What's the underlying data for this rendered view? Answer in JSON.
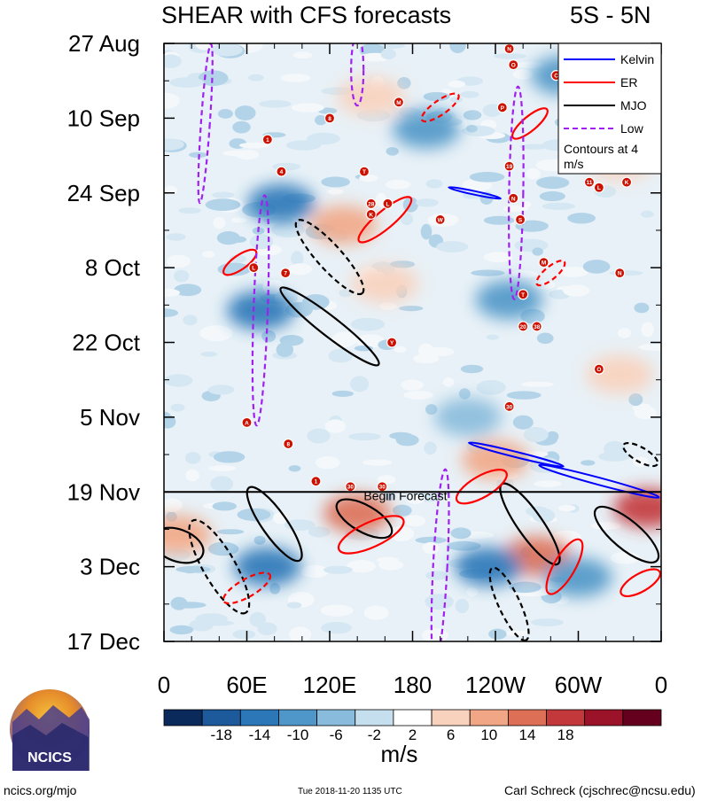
{
  "chart_data": {
    "type": "heatmap",
    "title": "SHEAR with CFS forecasts",
    "region": "5S - 5N",
    "y_tick_labels": [
      "27 Aug",
      "10 Sep",
      "24 Sep",
      "8 Oct",
      "22 Oct",
      "5 Nov",
      "19 Nov",
      "3 Dec",
      "17 Dec"
    ],
    "x_tick_labels": [
      "0",
      "60E",
      "120E",
      "180",
      "120W",
      "60W",
      "0"
    ],
    "x_range_degrees_east": [
      0,
      360
    ],
    "y_range_days_since_27_Aug": [
      0,
      112
    ],
    "forecast_start_day": 84,
    "forecast_label": "Begin Forecast",
    "colorbar": {
      "label": "m/s",
      "tick_labels": [
        "-18",
        "-14",
        "-10",
        "-6",
        "-2",
        "2",
        "6",
        "10",
        "14",
        "18"
      ],
      "colors": [
        "#0a2a5c",
        "#1c5a9c",
        "#2c77b8",
        "#4f97c8",
        "#89bcdc",
        "#c6dfee",
        "#ffffff",
        "#f9d2bd",
        "#f1a786",
        "#dd6f56",
        "#c3383a",
        "#9a1328",
        "#66001f"
      ]
    },
    "legend": {
      "position": "top-right",
      "entries": [
        {
          "name": "Kelvin",
          "color": "#0000ff"
        },
        {
          "name": "ER",
          "color": "#ff0000"
        },
        {
          "name": "MJO",
          "color": "#000000"
        },
        {
          "name": "Low",
          "color": "#a020f0"
        }
      ],
      "note": "Contours at 4 m/s"
    },
    "anomalies": [
      {
        "lon": 290,
        "day": 6,
        "v": -8,
        "label": "blue band"
      },
      {
        "lon": 150,
        "day": 10,
        "v": 8,
        "label": "warm streak"
      },
      {
        "lon": 190,
        "day": 16,
        "v": -8,
        "label": "blue area"
      },
      {
        "lon": 330,
        "day": 22,
        "v": 8,
        "label": "warm area"
      },
      {
        "lon": 85,
        "day": 30,
        "v": -14,
        "label": "blue core"
      },
      {
        "lon": 130,
        "day": 34,
        "v": 10,
        "label": "warm band"
      },
      {
        "lon": 70,
        "day": 50,
        "v": -12,
        "label": "blue column"
      },
      {
        "lon": 160,
        "day": 45,
        "v": 8,
        "label": "warm patch"
      },
      {
        "lon": 250,
        "day": 48,
        "v": -8,
        "label": "blue patch"
      },
      {
        "lon": 330,
        "day": 62,
        "v": 8,
        "label": "warm patch"
      },
      {
        "lon": 220,
        "day": 70,
        "v": -6,
        "label": "blue patch"
      },
      {
        "lon": 240,
        "day": 78,
        "v": 10,
        "label": "warm band"
      },
      {
        "lon": 140,
        "day": 88,
        "v": 16,
        "label": "warm core"
      },
      {
        "lon": 350,
        "day": 87,
        "v": 18,
        "label": "warm core"
      },
      {
        "lon": 10,
        "day": 92,
        "v": 12,
        "label": "warm core"
      },
      {
        "lon": 270,
        "day": 96,
        "v": 14,
        "label": "warm core"
      },
      {
        "lon": 235,
        "day": 98,
        "v": -12,
        "label": "blue core"
      },
      {
        "lon": 300,
        "day": 100,
        "v": -8,
        "label": "blue patch"
      },
      {
        "lon": 75,
        "day": 98,
        "v": -14,
        "label": "blue core"
      }
    ],
    "contours": [
      {
        "kind": "MJO",
        "sign": "neg",
        "lon": 120,
        "day": 40,
        "rx": 55,
        "ry": 14,
        "rot": 48
      },
      {
        "kind": "MJO",
        "sign": "pos",
        "lon": 120,
        "day": 53,
        "rx": 70,
        "ry": 11,
        "rot": 38
      },
      {
        "kind": "MJO",
        "sign": "pos",
        "lon": 80,
        "day": 90,
        "rx": 50,
        "ry": 14,
        "rot": 55
      },
      {
        "kind": "MJO",
        "sign": "neg",
        "lon": 40,
        "day": 98,
        "rx": 60,
        "ry": 18,
        "rot": 60
      },
      {
        "kind": "MJO",
        "sign": "pos",
        "lon": 145,
        "day": 89,
        "rx": 35,
        "ry": 15,
        "rot": 30
      },
      {
        "kind": "MJO",
        "sign": "pos",
        "lon": 265,
        "day": 90,
        "rx": 55,
        "ry": 14,
        "rot": 55
      },
      {
        "kind": "MJO",
        "sign": "pos",
        "lon": 335,
        "day": 92,
        "rx": 45,
        "ry": 16,
        "rot": 40
      },
      {
        "kind": "MJO",
        "sign": "neg",
        "lon": 250,
        "day": 105,
        "rx": 45,
        "ry": 12,
        "rot": 65
      },
      {
        "kind": "MJO",
        "sign": "pos",
        "lon": 10,
        "day": 94,
        "rx": 30,
        "ry": 18,
        "rot": 20
      },
      {
        "kind": "MJO",
        "sign": "neg",
        "lon": 345,
        "day": 77,
        "rx": 22,
        "ry": 8,
        "rot": 30
      },
      {
        "kind": "ER",
        "sign": "pos",
        "lon": 160,
        "day": 33,
        "rx": 38,
        "ry": 10,
        "rot": -40
      },
      {
        "kind": "ER",
        "sign": "pos",
        "lon": 55,
        "day": 41,
        "rx": 22,
        "ry": 8,
        "rot": -35
      },
      {
        "kind": "ER",
        "sign": "neg",
        "lon": 280,
        "day": 43,
        "rx": 20,
        "ry": 7,
        "rot": -40
      },
      {
        "kind": "ER",
        "sign": "pos",
        "lon": 150,
        "day": 92,
        "rx": 40,
        "ry": 14,
        "rot": -25
      },
      {
        "kind": "ER",
        "sign": "pos",
        "lon": 230,
        "day": 83,
        "rx": 32,
        "ry": 12,
        "rot": -30
      },
      {
        "kind": "ER",
        "sign": "pos",
        "lon": 290,
        "day": 98,
        "rx": 35,
        "ry": 12,
        "rot": -60
      },
      {
        "kind": "ER",
        "sign": "neg",
        "lon": 60,
        "day": 102,
        "rx": 30,
        "ry": 10,
        "rot": -30
      },
      {
        "kind": "ER",
        "sign": "neg",
        "lon": 200,
        "day": 12,
        "rx": 25,
        "ry": 8,
        "rot": -35
      },
      {
        "kind": "ER",
        "sign": "pos",
        "lon": 345,
        "day": 101,
        "rx": 25,
        "ry": 10,
        "rot": -30
      },
      {
        "kind": "ER",
        "sign": "pos",
        "lon": 265,
        "day": 15,
        "rx": 25,
        "ry": 8,
        "rot": -40
      },
      {
        "kind": "Kelvin",
        "sign": "pos",
        "lon": 255,
        "day": 77,
        "rx": 55,
        "ry": 3,
        "rot": 14
      },
      {
        "kind": "Kelvin",
        "sign": "pos",
        "lon": 315,
        "day": 82,
        "rx": 70,
        "ry": 4,
        "rot": 15
      },
      {
        "kind": "Kelvin",
        "sign": "pos",
        "lon": 225,
        "day": 28,
        "rx": 30,
        "ry": 2,
        "rot": 12
      },
      {
        "kind": "Low",
        "sign": "pos",
        "lon": 70,
        "day": 50,
        "rx": 8,
        "ry": 130,
        "rot": 2
      },
      {
        "kind": "Low",
        "sign": "pos",
        "lon": 30,
        "day": 15,
        "rx": 5,
        "ry": 90,
        "rot": 4
      },
      {
        "kind": "Low",
        "sign": "pos",
        "lon": 200,
        "day": 98,
        "rx": 8,
        "ry": 110,
        "rot": 3
      },
      {
        "kind": "Low",
        "sign": "pos",
        "lon": 255,
        "day": 28,
        "rx": 8,
        "ry": 120,
        "rot": 1
      },
      {
        "kind": "Low",
        "sign": "pos",
        "lon": 140,
        "day": 5,
        "rx": 7,
        "ry": 40,
        "rot": 0
      }
    ],
    "storm_symbols": [
      {
        "lon": 65,
        "day": 42,
        "label": "L"
      },
      {
        "lon": 88,
        "day": 43,
        "label": "7"
      },
      {
        "lon": 60,
        "day": 71,
        "label": "A"
      },
      {
        "lon": 90,
        "day": 75,
        "label": "8"
      },
      {
        "lon": 110,
        "day": 82,
        "label": "1"
      },
      {
        "lon": 135,
        "day": 83,
        "label": "30"
      },
      {
        "lon": 158,
        "day": 83,
        "label": "30"
      },
      {
        "lon": 75,
        "day": 18,
        "label": "1"
      },
      {
        "lon": 85,
        "day": 24,
        "label": "4"
      },
      {
        "lon": 120,
        "day": 14,
        "label": "8"
      },
      {
        "lon": 145,
        "day": 24,
        "label": "T"
      },
      {
        "lon": 150,
        "day": 30,
        "label": "28"
      },
      {
        "lon": 162,
        "day": 30,
        "label": "L"
      },
      {
        "lon": 150,
        "day": 32,
        "label": "K"
      },
      {
        "lon": 170,
        "day": 11,
        "label": "M"
      },
      {
        "lon": 165,
        "day": 56,
        "label": "Y"
      },
      {
        "lon": 200,
        "day": 33,
        "label": "W"
      },
      {
        "lon": 250,
        "day": 1,
        "label": "N"
      },
      {
        "lon": 253,
        "day": 4,
        "label": "O"
      },
      {
        "lon": 245,
        "day": 12,
        "label": "P"
      },
      {
        "lon": 250,
        "day": 23,
        "label": "19"
      },
      {
        "lon": 253,
        "day": 29,
        "label": "N"
      },
      {
        "lon": 258,
        "day": 33,
        "label": "S"
      },
      {
        "lon": 260,
        "day": 47,
        "label": "T"
      },
      {
        "lon": 260,
        "day": 53,
        "label": "20"
      },
      {
        "lon": 270,
        "day": 53,
        "label": "38"
      },
      {
        "lon": 250,
        "day": 68,
        "label": "30"
      },
      {
        "lon": 275,
        "day": 41,
        "label": "M"
      },
      {
        "lon": 284,
        "day": 6,
        "label": "C"
      },
      {
        "lon": 308,
        "day": 26,
        "label": "11"
      },
      {
        "lon": 315,
        "day": 27,
        "label": "L"
      },
      {
        "lon": 335,
        "day": 26,
        "label": "K"
      },
      {
        "lon": 330,
        "day": 43,
        "label": "N"
      },
      {
        "lon": 315,
        "day": 61,
        "label": "O"
      }
    ]
  },
  "footer": {
    "logo_text": "NCICS",
    "left": "ncics.org/mjo",
    "center": "Tue 2018-11-20 1135 UTC",
    "right": "Carl Schreck (cjschrec@ncsu.edu)"
  },
  "colors": {
    "ER": "#ff0000",
    "MJO": "#000000",
    "Kelvin": "#0000ff",
    "Low": "#a020f0",
    "storm": "#cc1100"
  }
}
